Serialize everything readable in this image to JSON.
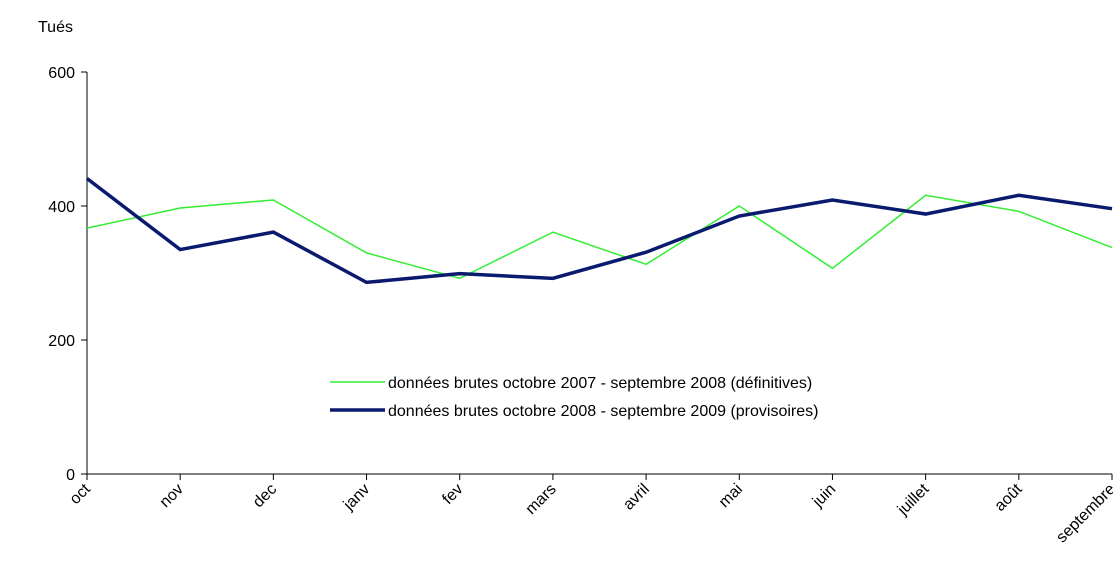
{
  "chart_data": {
    "type": "line",
    "y_label": "Tués",
    "categories": [
      "oct",
      "nov",
      "dec",
      "janv",
      "fev",
      "mars",
      "avril",
      "mai",
      "juin",
      "juillet",
      "août",
      "septembre"
    ],
    "series": [
      {
        "name": "données brutes octobre 2007 - septembre 2008 (définitives)",
        "color": "#33ee33",
        "width": 1.5,
        "values": [
          367,
          397,
          409,
          330,
          292,
          361,
          313,
          400,
          307,
          416,
          392,
          338
        ]
      },
      {
        "name": "données brutes octobre 2008 - septembre 2009 (provisoires)",
        "color": "#0a1a6e",
        "width": 3.5,
        "values": [
          441,
          335,
          361,
          286,
          299,
          292,
          331,
          385,
          409,
          388,
          416,
          396
        ]
      }
    ],
    "ylim": [
      0,
      600
    ],
    "yticks": [
      0,
      200,
      400,
      600
    ]
  }
}
